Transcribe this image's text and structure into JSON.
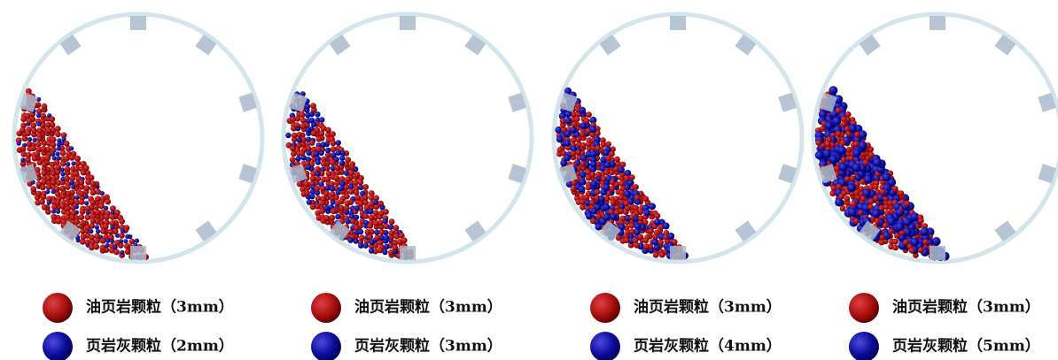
{
  "panels": [
    {
      "legend": [
        "油页岩颗粒（3mm）",
        "页岩灰颗粒（2mm）"
      ]
    },
    {
      "legend": [
        "油页岩颗粒（3mm）",
        "页岩灰颗粒（3mm）"
      ]
    },
    {
      "legend": [
        "油页岩颗粒（3mm）",
        "页岩灰颗粒（4mm）"
      ]
    },
    {
      "legend": [
        "油页岩颗粒（3mm）",
        "页岩灰颗粒（5mm）"
      ]
    }
  ]
}
